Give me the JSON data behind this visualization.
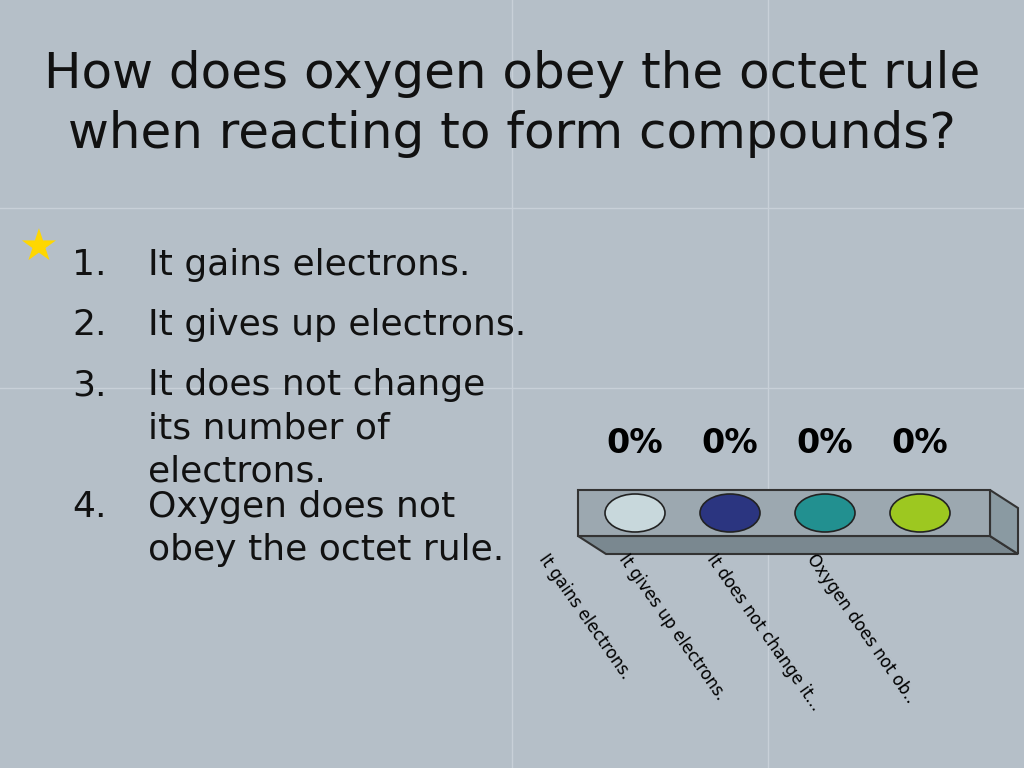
{
  "title_line1": "How does oxygen obey the octet rule",
  "title_line2": "when reacting to form compounds?",
  "bg_color": "#b5bfc8",
  "grid_color": "#c8d0d8",
  "title_color": "#111111",
  "title_fontsize": 36,
  "items": [
    "It gains electrons.",
    "It gives up electrons.",
    "It does not change\nits number of\nelectrons.",
    "Oxygen does not\nobey the octet rule."
  ],
  "item_fontsize": 26,
  "star_color": "#FFD700",
  "percentages": [
    "0%",
    "0%",
    "0%",
    "0%"
  ],
  "pct_fontsize": 24,
  "bar_top_color": "#9ca8b0",
  "bar_bottom_color": "#7a8890",
  "bar_right_color": "#8a9aa2",
  "bar_edge_color": "#333333",
  "dot_colors": [
    "#c8d8dc",
    "#2b3580",
    "#229090",
    "#9dc820"
  ],
  "label_texts": [
    "It gains electrons.",
    "It gives up electrons.",
    "It does not change it...",
    "Oxygen does not ob.."
  ],
  "label_rotation": -55,
  "label_fontsize": 12
}
